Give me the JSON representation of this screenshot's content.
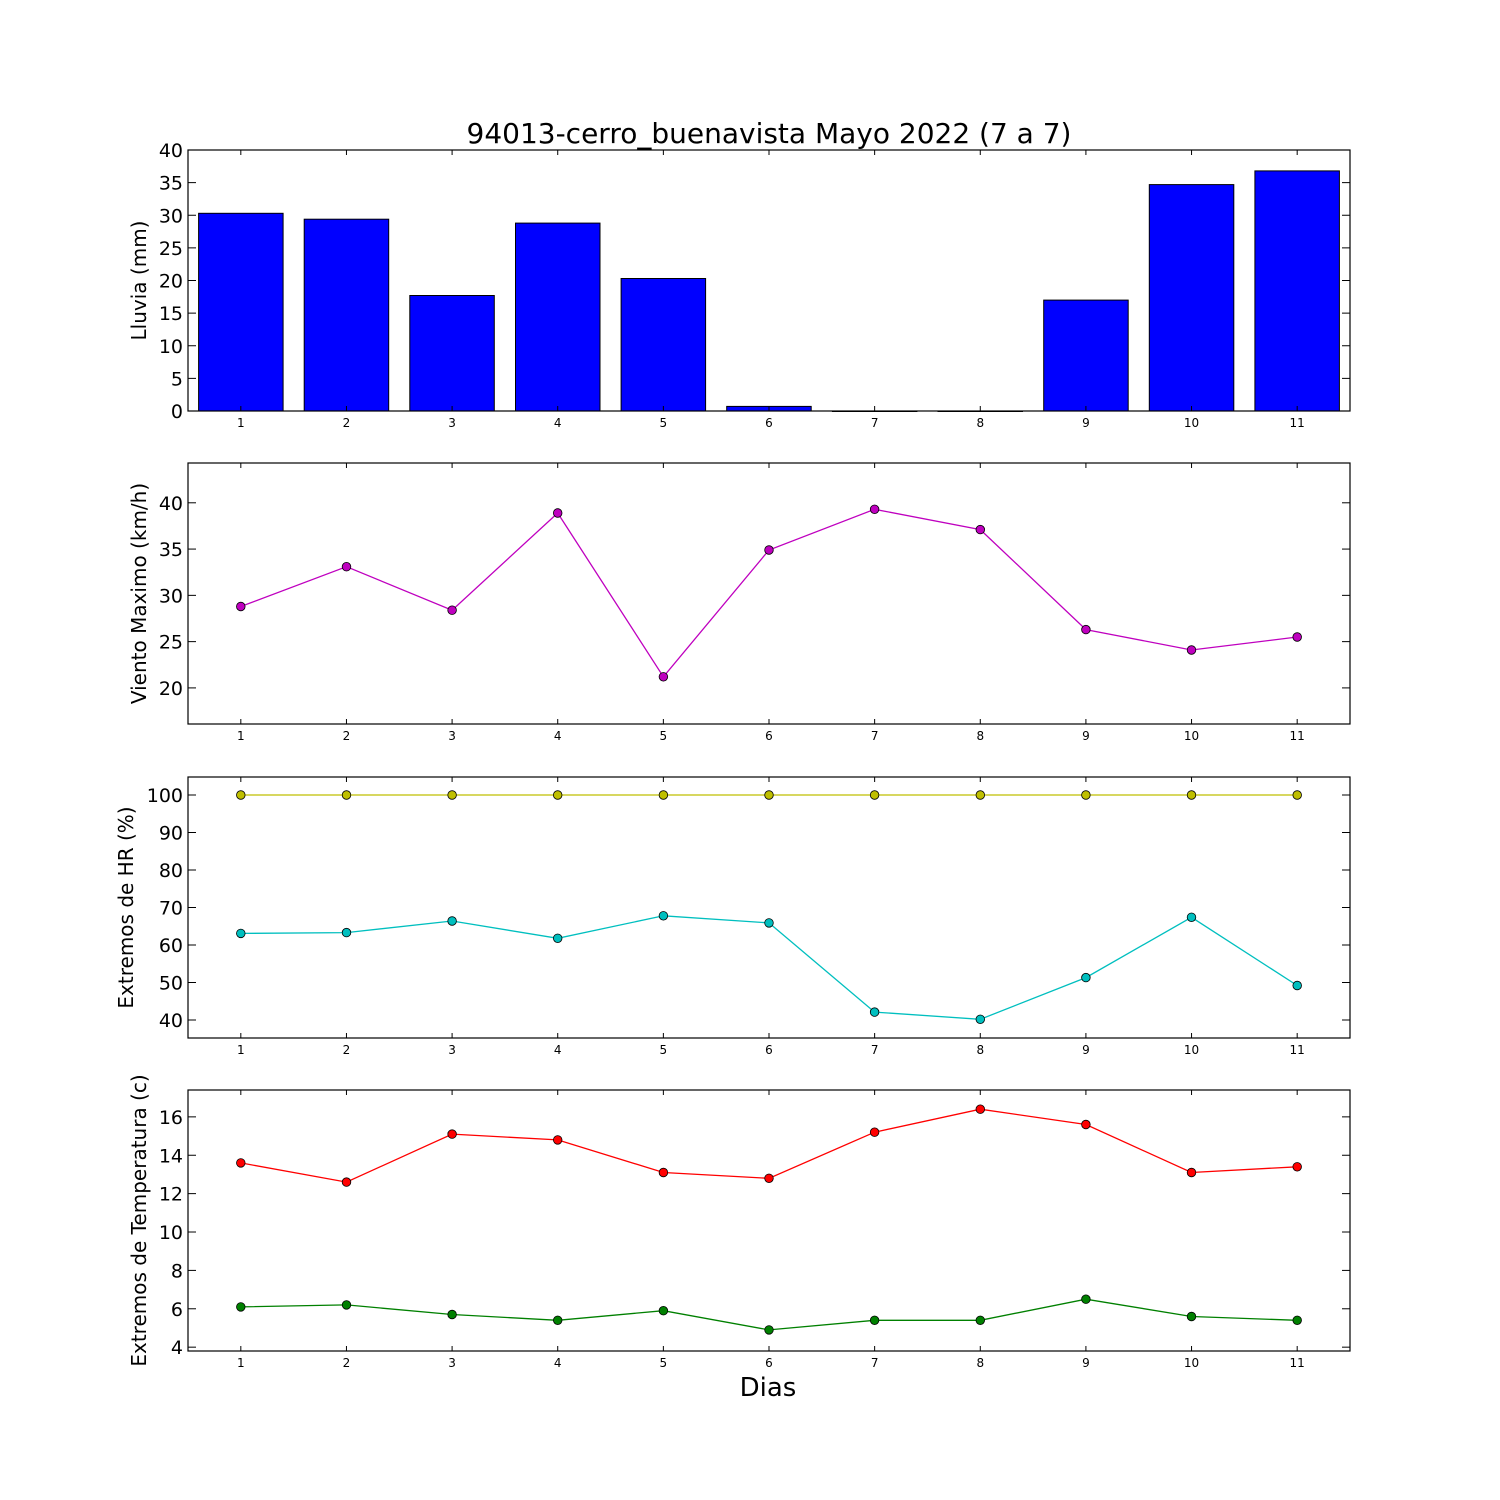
{
  "chart_data": [
    {
      "type": "bar",
      "title": "94013-cerro_buenavista Mayo 2022  (7 a 7)",
      "ylabel": "Lluvia (mm)",
      "categories": [
        "1",
        "2",
        "3",
        "4",
        "5",
        "6",
        "7",
        "8",
        "9",
        "10",
        "11"
      ],
      "values": [
        30.3,
        29.4,
        17.7,
        28.8,
        20.3,
        0.7,
        0,
        0,
        17.0,
        34.7,
        36.8
      ],
      "ylim": [
        0,
        40
      ],
      "yticks": [
        0,
        5,
        10,
        15,
        20,
        25,
        30,
        35,
        40
      ],
      "colors": {
        "bar": "#0000ff"
      }
    },
    {
      "type": "line",
      "ylabel": "Viento Maximo (km/h)",
      "x": [
        1,
        2,
        3,
        4,
        5,
        6,
        7,
        8,
        9,
        10,
        11
      ],
      "series": [
        {
          "values": [
            28.8,
            33.1,
            28.4,
            38.9,
            21.2,
            34.9,
            39.3,
            37.1,
            26.3,
            24.1,
            25.5
          ],
          "color": "#bf00bf"
        }
      ],
      "ylim": [
        16.1,
        44.3
      ],
      "yticks": [
        20,
        25,
        30,
        35,
        40
      ]
    },
    {
      "type": "line",
      "ylabel": "Extremos de HR (%)",
      "x": [
        1,
        2,
        3,
        4,
        5,
        6,
        7,
        8,
        9,
        10,
        11
      ],
      "series": [
        {
          "values": [
            100,
            100,
            100,
            100,
            100,
            100,
            100,
            100,
            100,
            100,
            100
          ],
          "color": "#bfbf00"
        },
        {
          "values": [
            63.1,
            63.3,
            66.4,
            61.8,
            67.8,
            65.9,
            42.1,
            40.2,
            51.3,
            67.4,
            49.2
          ],
          "color": "#00bfbf"
        }
      ],
      "ylim": [
        35.2,
        104.8
      ],
      "yticks": [
        40,
        50,
        60,
        70,
        80,
        90,
        100
      ]
    },
    {
      "type": "line",
      "ylabel": "Extremos de Temperatura (c)",
      "xlabel": "Dias",
      "x": [
        1,
        2,
        3,
        4,
        5,
        6,
        7,
        8,
        9,
        10,
        11
      ],
      "series": [
        {
          "values": [
            13.6,
            12.6,
            15.1,
            14.8,
            13.1,
            12.8,
            15.2,
            16.4,
            15.6,
            13.1,
            13.4
          ],
          "color": "#ff0000"
        },
        {
          "values": [
            6.1,
            6.2,
            5.7,
            5.4,
            5.9,
            4.9,
            5.4,
            5.4,
            6.5,
            5.6,
            5.4
          ],
          "color": "#008000"
        }
      ],
      "ylim": [
        3.8,
        17.4
      ],
      "yticks": [
        4,
        6,
        8,
        10,
        12,
        14,
        16
      ]
    }
  ]
}
